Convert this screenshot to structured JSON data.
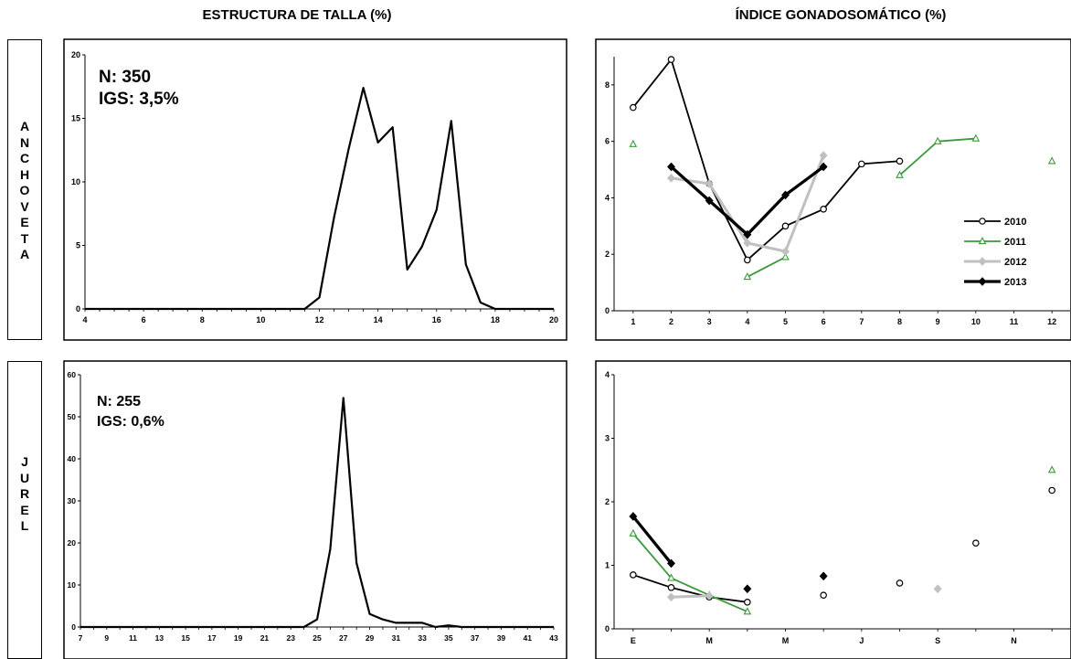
{
  "headers": {
    "left": "ESTRUCTURA DE TALLA (%)",
    "right": "ÍNDICE GONADOSOMÁTICO (%)"
  },
  "side_labels": {
    "top": "A\nN\nC\nH\nO\nV\nE\nT\nA",
    "bottom": "J\nU\nR\nE\nL"
  },
  "colors": {
    "2010": "#000000",
    "2011": "#3a9a3a",
    "2012": "#c0c0c0",
    "2013": "#000000",
    "talla": "#000000"
  },
  "chart_data": [
    {
      "id": "talla-anchoveta",
      "type": "line",
      "annotations": [
        "N: 350",
        "IGS: 3,5%"
      ],
      "xlim": [
        4,
        20
      ],
      "ylim": [
        0,
        20
      ],
      "xticks": [
        4,
        6,
        8,
        10,
        12,
        14,
        16,
        18,
        20
      ],
      "yticks": [
        0,
        5,
        10,
        15,
        20
      ],
      "grid": false,
      "series": [
        {
          "x": [
            4,
            4.5,
            5,
            5.5,
            6,
            6.5,
            7,
            7.5,
            8,
            8.5,
            9,
            9.5,
            10,
            10.5,
            11,
            11.5,
            12,
            12.5,
            13,
            13.5,
            14,
            14.5,
            15,
            15.5,
            16,
            16.5,
            17,
            17.5,
            18,
            18.5,
            19,
            19.5,
            20
          ],
          "values": [
            0,
            0,
            0,
            0,
            0,
            0,
            0,
            0,
            0,
            0,
            0,
            0,
            0,
            0,
            0,
            0,
            0.9,
            7.2,
            12.6,
            17.4,
            13.1,
            14.3,
            3.1,
            4.9,
            7.8,
            14.8,
            3.5,
            0.5,
            0,
            0,
            0,
            0,
            0
          ]
        }
      ]
    },
    {
      "id": "igs-anchoveta",
      "type": "line",
      "xlim": [
        0.5,
        12.5
      ],
      "ylim": [
        0,
        9
      ],
      "xticks": [
        1,
        2,
        3,
        4,
        5,
        6,
        7,
        8,
        9,
        10,
        11,
        12
      ],
      "yticks": [
        0,
        2,
        4,
        6,
        8
      ],
      "grid": false,
      "legend": "right",
      "series": [
        {
          "name": "2010",
          "x": [
            1,
            2,
            3,
            4,
            5,
            6,
            7,
            8
          ],
          "values": [
            7.2,
            8.9,
            4.5,
            1.8,
            3.0,
            3.6,
            5.2,
            5.3
          ],
          "marker": "circle"
        },
        {
          "name": "2011",
          "x": [
            1,
            2,
            3,
            4,
            5,
            6,
            7,
            8,
            9,
            10,
            11,
            12
          ],
          "values": [
            5.9,
            null,
            null,
            1.2,
            1.9,
            null,
            null,
            4.8,
            6.0,
            6.1,
            null,
            5.3
          ],
          "marker": "triangle"
        },
        {
          "name": "2012",
          "x": [
            2,
            3,
            4,
            5,
            6
          ],
          "values": [
            4.7,
            4.5,
            2.4,
            2.1,
            5.5
          ],
          "marker": "diamond"
        },
        {
          "name": "2013",
          "x": [
            2,
            3,
            4,
            5,
            6
          ],
          "values": [
            5.1,
            3.9,
            2.7,
            4.1,
            5.1
          ],
          "marker": "diamond"
        }
      ]
    },
    {
      "id": "talla-jurel",
      "type": "line",
      "annotations": [
        "N: 255",
        "IGS: 0,6%"
      ],
      "xlim": [
        7,
        43
      ],
      "ylim": [
        0,
        60
      ],
      "xticks": [
        7,
        9,
        11,
        13,
        15,
        17,
        19,
        21,
        23,
        25,
        27,
        29,
        31,
        33,
        35,
        37,
        39,
        41,
        43
      ],
      "yticks": [
        0,
        10,
        20,
        30,
        40,
        50,
        60
      ],
      "grid": false,
      "series": [
        {
          "x": [
            7,
            8,
            9,
            10,
            11,
            12,
            13,
            14,
            15,
            16,
            17,
            18,
            19,
            20,
            21,
            22,
            23,
            24,
            25,
            26,
            27,
            28,
            29,
            30,
            31,
            32,
            33,
            34,
            35,
            36,
            37,
            38,
            39,
            40,
            41,
            42,
            43
          ],
          "values": [
            0,
            0,
            0,
            0,
            0,
            0,
            0,
            0,
            0,
            0,
            0,
            0,
            0,
            0,
            0,
            0,
            0,
            0,
            1.8,
            18.5,
            54.5,
            15.2,
            3.1,
            1.8,
            1.0,
            1.0,
            1.0,
            0,
            0.4,
            0,
            0,
            0,
            0,
            0,
            0,
            0,
            0
          ]
        }
      ]
    },
    {
      "id": "igs-jurel",
      "type": "line",
      "xlim": [
        0.5,
        12.5
      ],
      "ylim": [
        0,
        4
      ],
      "xticks": [
        "E",
        "M",
        "M",
        "J",
        "S",
        "N"
      ],
      "yticks": [
        0,
        1,
        2,
        3,
        4
      ],
      "grid": false,
      "series": [
        {
          "name": "2010",
          "x": [
            1,
            2,
            3,
            4,
            6,
            8,
            10,
            12
          ],
          "values": [
            0.85,
            0.65,
            0.5,
            0.42,
            0.53,
            0.72,
            1.35,
            2.18
          ],
          "marker": "circle"
        },
        {
          "name": "2011",
          "x": [
            1,
            2,
            3,
            4,
            12
          ],
          "values": [
            1.5,
            0.8,
            0.53,
            0.27,
            2.5
          ],
          "marker": "triangle"
        },
        {
          "name": "2012",
          "x": [
            2,
            3,
            9
          ],
          "values": [
            0.5,
            0.52,
            0.63
          ],
          "marker": "diamond"
        },
        {
          "name": "2013",
          "x": [
            1,
            2,
            4,
            6
          ],
          "values": [
            1.77,
            1.03,
            0.63,
            0.83
          ],
          "marker": "diamond"
        }
      ]
    }
  ]
}
